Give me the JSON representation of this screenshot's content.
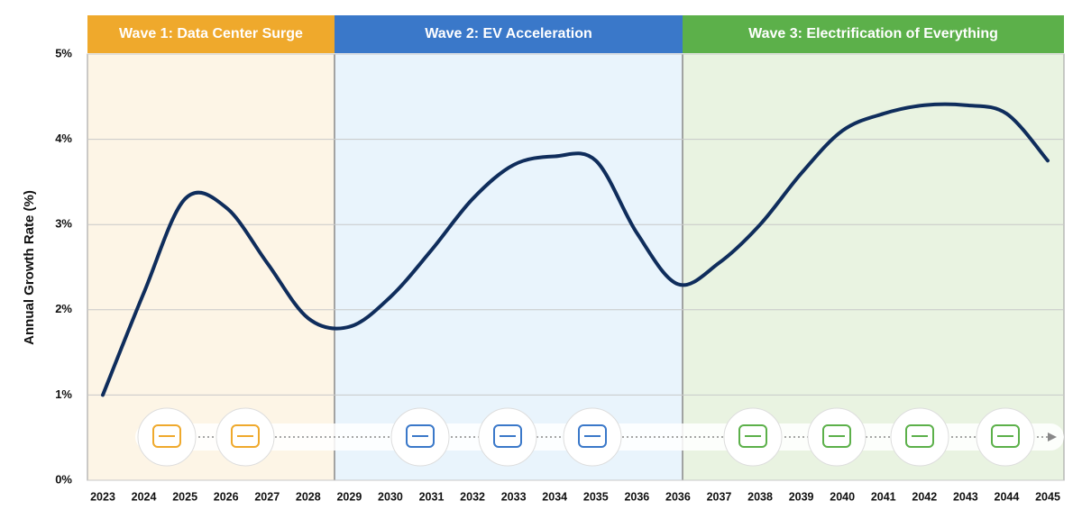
{
  "chart_data": {
    "type": "line",
    "waves": [
      {
        "label": "Wave 1: Data Center Surge",
        "color": "#efa92c",
        "background": "#fdf5e6"
      },
      {
        "label": "Wave 2: EV Acceleration",
        "color": "#3a78c9",
        "background": "#e9f4fc"
      },
      {
        "label": "Wave 3: Electrification of Everything",
        "color": "#5cb04a",
        "background": "#e9f3e1"
      }
    ],
    "y_label": "Annual Growth Rate (%)",
    "categories": [
      "2023",
      "2024",
      "2025",
      "2026",
      "2027",
      "2028",
      "2029",
      "2030",
      "2031",
      "2032",
      "2033",
      "2034",
      "2035",
      "2036",
      "2036",
      "2037",
      "2038",
      "2039",
      "2040",
      "2041",
      "2042",
      "2043",
      "2044",
      "2045"
    ],
    "series": [
      {
        "color": "#0f2d5c",
        "values": [
          1.0,
          2.2,
          3.3,
          3.2,
          2.55,
          1.9,
          1.8,
          2.15,
          2.7,
          3.3,
          3.7,
          3.8,
          3.75,
          2.9,
          2.3,
          2.55,
          3.0,
          3.6,
          4.1,
          4.3,
          4.4,
          4.4,
          4.3,
          3.75
        ]
      }
    ],
    "ylim": [
      0,
      5
    ],
    "yticks": [
      {
        "value": 0,
        "label": "0%"
      },
      {
        "value": 1,
        "label": "1%"
      },
      {
        "value": 2,
        "label": "2%"
      },
      {
        "value": 3,
        "label": "3%"
      },
      {
        "value": 4,
        "label": "4%"
      },
      {
        "value": 5,
        "label": "5%"
      }
    ],
    "grid": true
  }
}
